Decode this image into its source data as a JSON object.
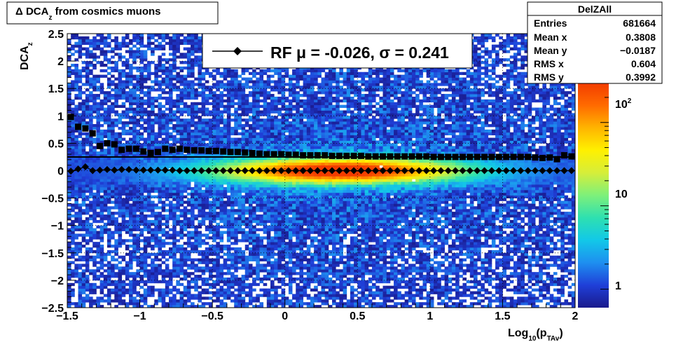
{
  "chart_data": {
    "type": "heatmap",
    "title_parts": {
      "prefix": "Δ DCA",
      "sub": "z",
      "suffix": " from cosmics muons"
    },
    "ylabel": {
      "main": "DCA",
      "sub": "z"
    },
    "xlabel": {
      "pre": "Log",
      "sub1": "10",
      "mid": "(p",
      "sub2": "TAv",
      "post": ")"
    },
    "xlim": [
      -1.5,
      2.0
    ],
    "ylim": [
      -2.5,
      2.5
    ],
    "x_ticks": [
      -1.5,
      -1,
      -0.5,
      0,
      0.5,
      1,
      1.5,
      2
    ],
    "x_tick_labels": [
      "−1.5",
      "−1",
      "−0.5",
      "0",
      "0.5",
      "1",
      "1.5",
      "2"
    ],
    "y_ticks": [
      2.5,
      2,
      1.5,
      1,
      0.5,
      0,
      -0.5,
      -1,
      -1.5,
      -2,
      -2.5
    ],
    "y_tick_labels": [
      "2.5",
      "2",
      "1.5",
      "1",
      "0.5",
      "0",
      "−0.5",
      "−1",
      "−1.5",
      "−2",
      "−2.5"
    ],
    "grid": true,
    "colorbar": {
      "scale": "log",
      "tick_labels": [
        "1",
        "10",
        "10"
      ],
      "tick_label_sup": "2",
      "colors": [
        "#1a1a8c",
        "#1f3fd8",
        "#1e8ff0",
        "#12c8e8",
        "#2ee0b0",
        "#7ef07a",
        "#d6ee3a",
        "#fff000",
        "#ffb400",
        "#ff6a00",
        "#f23c00"
      ]
    },
    "stats_box": {
      "title": "DelZAll",
      "rows": [
        {
          "label": "Entries",
          "value": "681664"
        },
        {
          "label": "Mean x",
          "value": "0.3808"
        },
        {
          "label": "Mean y",
          "value": "−0.0187"
        },
        {
          "label": "RMS x",
          "value": "0.604"
        },
        {
          "label": "RMS y",
          "value": "0.3992"
        }
      ]
    },
    "legend": {
      "label": "RF μ = -0.026, σ =   0.241",
      "marker": "diamond"
    },
    "series": [
      {
        "marker": "square",
        "x": [
          -1.475,
          -1.425,
          -1.375,
          -1.325,
          -1.275,
          -1.225,
          -1.175,
          -1.125,
          -1.075,
          -1.025,
          -0.975,
          -0.925,
          -0.875,
          -0.825,
          -0.775,
          -0.725,
          -0.675,
          -0.625,
          -0.575,
          -0.525,
          -0.475,
          -0.425,
          -0.375,
          -0.325,
          -0.275,
          -0.225,
          -0.175,
          -0.125,
          -0.075,
          -0.025,
          0.025,
          0.075,
          0.125,
          0.175,
          0.225,
          0.275,
          0.325,
          0.375,
          0.425,
          0.475,
          0.525,
          0.575,
          0.625,
          0.675,
          0.725,
          0.775,
          0.825,
          0.875,
          0.925,
          0.975,
          1.025,
          1.075,
          1.125,
          1.175,
          1.225,
          1.275,
          1.325,
          1.375,
          1.425,
          1.475,
          1.525,
          1.575,
          1.625,
          1.675,
          1.725,
          1.775,
          1.825,
          1.875,
          1.925,
          1.975
        ],
        "values": [
          0.98,
          0.8,
          0.77,
          0.68,
          0.45,
          0.5,
          0.48,
          0.38,
          0.4,
          0.4,
          0.35,
          0.32,
          0.34,
          0.4,
          0.38,
          0.4,
          0.38,
          0.37,
          0.37,
          0.36,
          0.36,
          0.35,
          0.34,
          0.34,
          0.33,
          0.32,
          0.31,
          0.3,
          0.3,
          0.3,
          0.29,
          0.29,
          0.28,
          0.28,
          0.28,
          0.28,
          0.27,
          0.27,
          0.27,
          0.27,
          0.27,
          0.26,
          0.26,
          0.26,
          0.26,
          0.26,
          0.26,
          0.26,
          0.26,
          0.26,
          0.25,
          0.25,
          0.25,
          0.25,
          0.25,
          0.25,
          0.25,
          0.25,
          0.25,
          0.25,
          0.25,
          0.25,
          0.25,
          0.25,
          0.24,
          0.23,
          0.24,
          0.21,
          0.28,
          0.26
        ]
      },
      {
        "marker": "diamond",
        "x": [
          -1.475,
          -1.425,
          -1.375,
          -1.325,
          -1.275,
          -1.225,
          -1.175,
          -1.125,
          -1.075,
          -1.025,
          -0.975,
          -0.925,
          -0.875,
          -0.825,
          -0.775,
          -0.725,
          -0.675,
          -0.625,
          -0.575,
          -0.525,
          -0.475,
          -0.425,
          -0.375,
          -0.325,
          -0.275,
          -0.225,
          -0.175,
          -0.125,
          -0.075,
          -0.025,
          0.025,
          0.075,
          0.125,
          0.175,
          0.225,
          0.275,
          0.325,
          0.375,
          0.425,
          0.475,
          0.525,
          0.575,
          0.625,
          0.675,
          0.725,
          0.775,
          0.825,
          0.875,
          0.925,
          0.975,
          1.025,
          1.075,
          1.125,
          1.175,
          1.225,
          1.275,
          1.325,
          1.375,
          1.425,
          1.475,
          1.525,
          1.575,
          1.625,
          1.675,
          1.725,
          1.775,
          1.825,
          1.875,
          1.925,
          1.975
        ],
        "values": [
          -0.01,
          0.03,
          0.07,
          0.0,
          0.01,
          0.02,
          0.01,
          0.02,
          0.02,
          0.01,
          0.01,
          0.01,
          0.01,
          0.01,
          0.01,
          0.0,
          0.0,
          0.0,
          0.0,
          0.0,
          0.0,
          0.0,
          0.0,
          0.0,
          0.0,
          0.0,
          0.0,
          0.0,
          0.0,
          0.0,
          0.0,
          0.0,
          0.0,
          0.0,
          0.0,
          0.0,
          0.0,
          0.0,
          0.0,
          0.0,
          0.0,
          0.0,
          0.0,
          0.0,
          0.0,
          0.0,
          0.0,
          0.0,
          0.0,
          0.0,
          0.0,
          0.0,
          0.0,
          0.0,
          0.0,
          0.0,
          0.0,
          0.0,
          0.0,
          0.0,
          0.0,
          0.0,
          0.0,
          0.0,
          0.0,
          0.0,
          0.0,
          0.0,
          0.0,
          0.0
        ]
      }
    ],
    "fit_line": {
      "x": [
        -1.5,
        2.0
      ],
      "y": [
        0.25,
        0.25
      ]
    }
  }
}
